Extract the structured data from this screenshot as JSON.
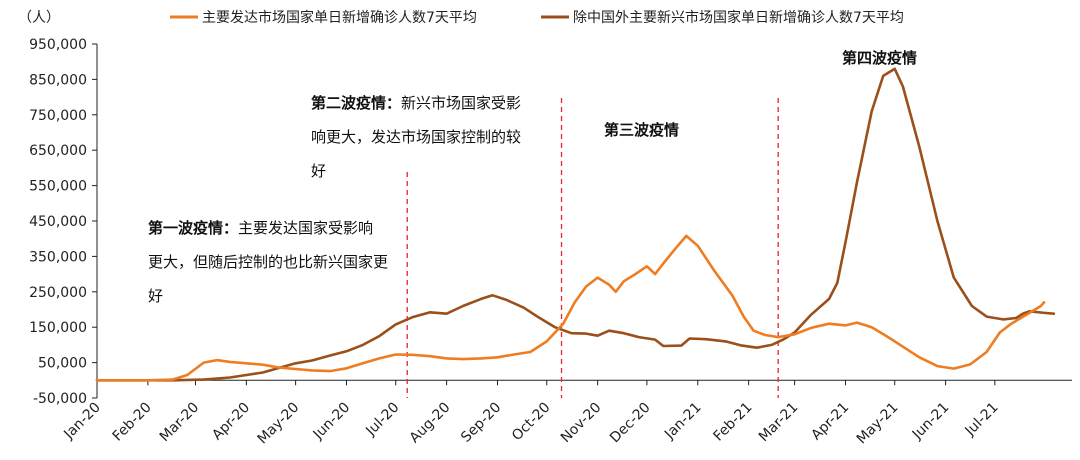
{
  "chart_data": {
    "type": "line",
    "ylabel": "（人）",
    "ylim": [
      -50000,
      950000
    ],
    "yticks": [
      -50000,
      50000,
      150000,
      250000,
      350000,
      450000,
      550000,
      650000,
      750000,
      850000,
      950000
    ],
    "ytick_labels": [
      "-50,000",
      "50,000",
      "150,000",
      "250,000",
      "350,000",
      "450,000",
      "550,000",
      "650,000",
      "750,000",
      "850,000",
      "950,000"
    ],
    "x_start": "2020-01-15",
    "x_end": "2021-08-31",
    "x_tick_dates": [
      "2020-01-15",
      "2020-02-15",
      "2020-03-15",
      "2020-04-15",
      "2020-05-15",
      "2020-06-15",
      "2020-07-15",
      "2020-08-15",
      "2020-09-15",
      "2020-10-15",
      "2020-11-15",
      "2020-12-15",
      "2021-01-15",
      "2021-02-15",
      "2021-03-15",
      "2021-04-15",
      "2021-05-15",
      "2021-06-15",
      "2021-07-15"
    ],
    "x_tick_labels": [
      "Jan-20",
      "Feb-20",
      "Mar-20",
      "Apr-20",
      "May-20",
      "Jun-20",
      "Jul-20",
      "Aug-20",
      "Sep-20",
      "Oct-20",
      "Nov-20",
      "Dec-20",
      "Jan-21",
      "Feb-21",
      "Mar-21",
      "Apr-21",
      "May-21",
      "Jun-21",
      "Jul-21"
    ],
    "series": [
      {
        "name": "主要发达市场国家单日新增确诊人数7天平均",
        "color": "#ee7d22",
        "points": [
          [
            "2020-01-15",
            0
          ],
          [
            "2020-02-15",
            0
          ],
          [
            "2020-03-01",
            2000
          ],
          [
            "2020-03-10",
            15000
          ],
          [
            "2020-03-20",
            50000
          ],
          [
            "2020-03-28",
            57000
          ],
          [
            "2020-04-05",
            52000
          ],
          [
            "2020-04-15",
            48000
          ],
          [
            "2020-04-25",
            44000
          ],
          [
            "2020-05-05",
            36000
          ],
          [
            "2020-05-15",
            32000
          ],
          [
            "2020-05-25",
            28000
          ],
          [
            "2020-06-05",
            26000
          ],
          [
            "2020-06-15",
            34000
          ],
          [
            "2020-06-25",
            48000
          ],
          [
            "2020-07-05",
            62000
          ],
          [
            "2020-07-15",
            73000
          ],
          [
            "2020-07-25",
            72000
          ],
          [
            "2020-08-05",
            68000
          ],
          [
            "2020-08-15",
            62000
          ],
          [
            "2020-08-25",
            60000
          ],
          [
            "2020-09-05",
            62000
          ],
          [
            "2020-09-15",
            65000
          ],
          [
            "2020-09-25",
            73000
          ],
          [
            "2020-10-05",
            80000
          ],
          [
            "2020-10-15",
            110000
          ],
          [
            "2020-10-25",
            160000
          ],
          [
            "2020-11-01",
            220000
          ],
          [
            "2020-11-08",
            265000
          ],
          [
            "2020-11-15",
            290000
          ],
          [
            "2020-11-22",
            270000
          ],
          [
            "2020-11-26",
            250000
          ],
          [
            "2020-12-01",
            280000
          ],
          [
            "2020-12-08",
            300000
          ],
          [
            "2020-12-15",
            322000
          ],
          [
            "2020-12-20",
            300000
          ],
          [
            "2020-12-25",
            330000
          ],
          [
            "2021-01-01",
            370000
          ],
          [
            "2021-01-08",
            408000
          ],
          [
            "2021-01-15",
            380000
          ],
          [
            "2021-01-25",
            310000
          ],
          [
            "2021-02-05",
            240000
          ],
          [
            "2021-02-12",
            180000
          ],
          [
            "2021-02-18",
            140000
          ],
          [
            "2021-02-25",
            128000
          ],
          [
            "2021-03-05",
            122000
          ],
          [
            "2021-03-15",
            130000
          ],
          [
            "2021-03-25",
            148000
          ],
          [
            "2021-04-05",
            160000
          ],
          [
            "2021-04-15",
            155000
          ],
          [
            "2021-04-22",
            163000
          ],
          [
            "2021-05-01",
            150000
          ],
          [
            "2021-05-10",
            125000
          ],
          [
            "2021-05-20",
            95000
          ],
          [
            "2021-05-30",
            65000
          ],
          [
            "2021-06-10",
            40000
          ],
          [
            "2021-06-20",
            33000
          ],
          [
            "2021-06-30",
            45000
          ],
          [
            "2021-07-10",
            80000
          ],
          [
            "2021-07-18",
            135000
          ],
          [
            "2021-07-25",
            160000
          ],
          [
            "2021-08-05",
            190000
          ],
          [
            "2021-08-12",
            210000
          ],
          [
            "2021-08-14",
            220000
          ]
        ]
      },
      {
        "name": "除中国外主要新兴市场国家单日新增确诊人数7天平均",
        "color": "#9b4f1a",
        "points": [
          [
            "2020-01-15",
            0
          ],
          [
            "2020-03-01",
            0
          ],
          [
            "2020-03-20",
            2000
          ],
          [
            "2020-04-05",
            8000
          ],
          [
            "2020-04-15",
            15000
          ],
          [
            "2020-04-25",
            22000
          ],
          [
            "2020-05-05",
            35000
          ],
          [
            "2020-05-15",
            48000
          ],
          [
            "2020-05-25",
            56000
          ],
          [
            "2020-06-05",
            70000
          ],
          [
            "2020-06-15",
            82000
          ],
          [
            "2020-06-25",
            100000
          ],
          [
            "2020-07-05",
            125000
          ],
          [
            "2020-07-15",
            158000
          ],
          [
            "2020-07-25",
            178000
          ],
          [
            "2020-08-05",
            192000
          ],
          [
            "2020-08-15",
            188000
          ],
          [
            "2020-08-25",
            210000
          ],
          [
            "2020-09-05",
            230000
          ],
          [
            "2020-09-12",
            240000
          ],
          [
            "2020-09-20",
            228000
          ],
          [
            "2020-10-01",
            205000
          ],
          [
            "2020-10-10",
            178000
          ],
          [
            "2020-10-20",
            150000
          ],
          [
            "2020-10-30",
            133000
          ],
          [
            "2020-11-08",
            132000
          ],
          [
            "2020-11-15",
            126000
          ],
          [
            "2020-11-22",
            140000
          ],
          [
            "2020-12-01",
            133000
          ],
          [
            "2020-12-10",
            122000
          ],
          [
            "2020-12-20",
            115000
          ],
          [
            "2020-12-25",
            97000
          ],
          [
            "2021-01-05",
            98000
          ],
          [
            "2021-01-10",
            118000
          ],
          [
            "2021-01-20",
            116000
          ],
          [
            "2021-02-01",
            110000
          ],
          [
            "2021-02-10",
            99000
          ],
          [
            "2021-02-20",
            92000
          ],
          [
            "2021-03-01",
            100000
          ],
          [
            "2021-03-08",
            115000
          ],
          [
            "2021-03-15",
            135000
          ],
          [
            "2021-03-25",
            185000
          ],
          [
            "2021-04-05",
            230000
          ],
          [
            "2021-04-10",
            275000
          ],
          [
            "2021-04-15",
            390000
          ],
          [
            "2021-04-22",
            560000
          ],
          [
            "2021-05-01",
            760000
          ],
          [
            "2021-05-08",
            860000
          ],
          [
            "2021-05-15",
            880000
          ],
          [
            "2021-05-20",
            830000
          ],
          [
            "2021-05-30",
            660000
          ],
          [
            "2021-06-10",
            450000
          ],
          [
            "2021-06-20",
            290000
          ],
          [
            "2021-07-01",
            210000
          ],
          [
            "2021-07-10",
            180000
          ],
          [
            "2021-07-20",
            172000
          ],
          [
            "2021-07-28",
            176000
          ],
          [
            "2021-08-01",
            188000
          ],
          [
            "2021-08-05",
            195000
          ],
          [
            "2021-08-15",
            190000
          ],
          [
            "2021-08-20",
            188000
          ]
        ]
      }
    ],
    "wave_lines": [
      "2020-07-22",
      "2020-10-24",
      "2021-03-05"
    ],
    "wave_line_color": "#e8232a"
  },
  "annotations": {
    "wave1_title": "第一波疫情：",
    "wave1_body_a": "主要发达国家受影响",
    "wave1_body_b": "更大，但随后控制的也比新兴国家更",
    "wave1_body_c": "好",
    "wave2_title": "第二波疫情：",
    "wave2_body_a": "新兴市场国家受影",
    "wave2_body_b": "响更大，发达市场国家控制的较",
    "wave2_body_c": "好",
    "wave3_title": "第三波疫情",
    "wave4_title": "第四波疫情"
  }
}
